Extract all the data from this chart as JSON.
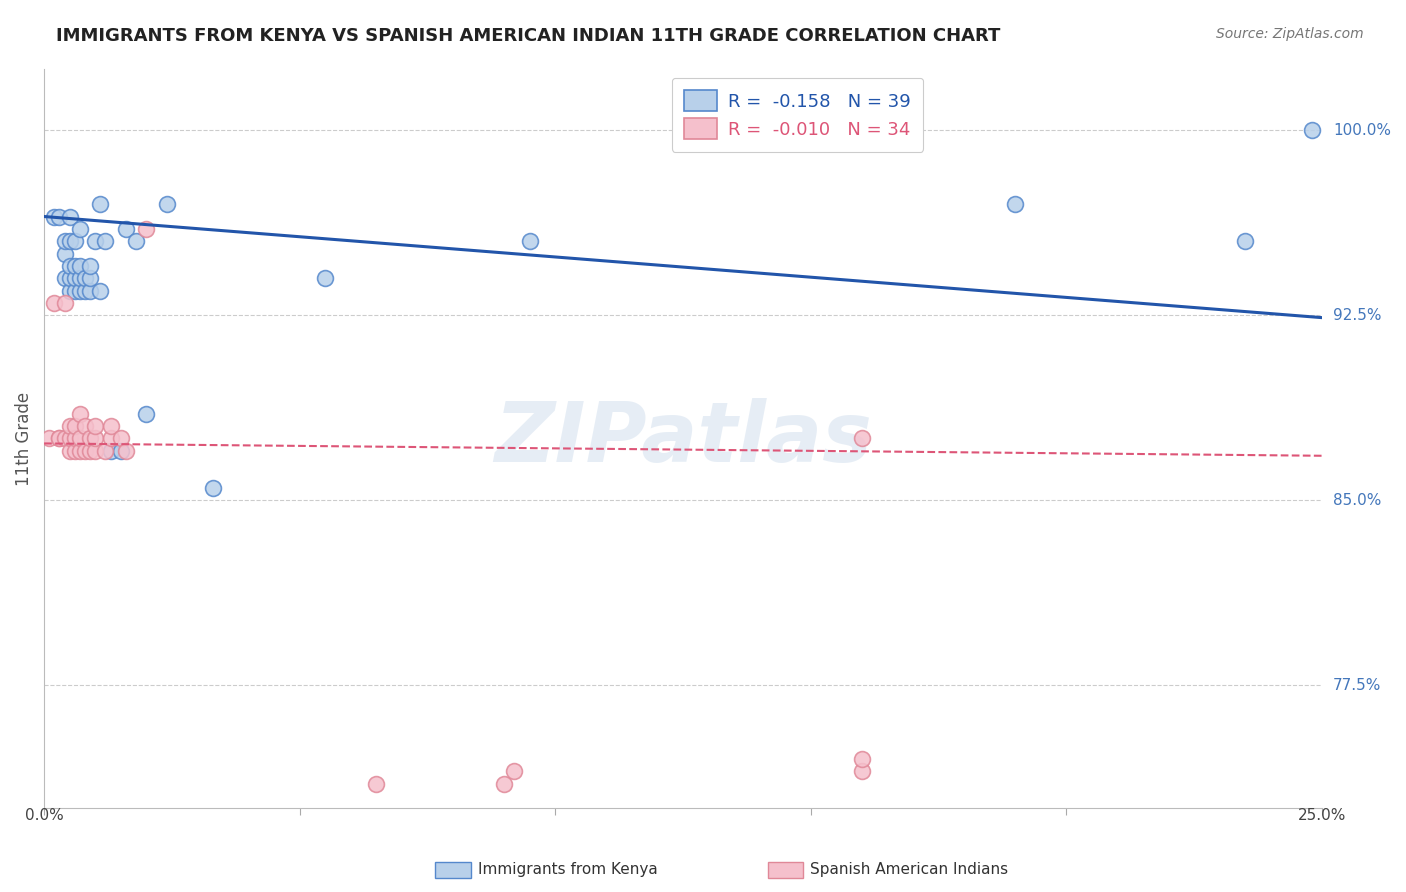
{
  "title": "IMMIGRANTS FROM KENYA VS SPANISH AMERICAN INDIAN 11TH GRADE CORRELATION CHART",
  "source": "Source: ZipAtlas.com",
  "ylabel": "11th Grade",
  "ytick_labels": [
    "100.0%",
    "92.5%",
    "85.0%",
    "77.5%"
  ],
  "ytick_values": [
    1.0,
    0.925,
    0.85,
    0.775
  ],
  "xlim": [
    0.0,
    0.25
  ],
  "ylim": [
    0.725,
    1.025
  ],
  "watermark": "ZIPatlas",
  "legend_R1": "-0.158",
  "legend_N1": "39",
  "legend_R2": "-0.010",
  "legend_N2": "34",
  "blue_scatter_x": [
    0.002,
    0.003,
    0.004,
    0.004,
    0.004,
    0.005,
    0.005,
    0.005,
    0.005,
    0.005,
    0.006,
    0.006,
    0.006,
    0.006,
    0.007,
    0.007,
    0.007,
    0.007,
    0.008,
    0.008,
    0.009,
    0.009,
    0.009,
    0.01,
    0.011,
    0.011,
    0.012,
    0.013,
    0.015,
    0.016,
    0.018,
    0.02,
    0.024,
    0.033,
    0.055,
    0.095,
    0.19,
    0.235,
    0.248
  ],
  "blue_scatter_y": [
    0.965,
    0.965,
    0.94,
    0.95,
    0.955,
    0.935,
    0.94,
    0.945,
    0.955,
    0.965,
    0.935,
    0.94,
    0.945,
    0.955,
    0.935,
    0.94,
    0.945,
    0.96,
    0.935,
    0.94,
    0.935,
    0.94,
    0.945,
    0.955,
    0.935,
    0.97,
    0.955,
    0.87,
    0.87,
    0.96,
    0.955,
    0.885,
    0.97,
    0.855,
    0.94,
    0.955,
    0.97,
    0.955,
    1.0
  ],
  "pink_scatter_x": [
    0.001,
    0.002,
    0.003,
    0.003,
    0.004,
    0.004,
    0.005,
    0.005,
    0.005,
    0.006,
    0.006,
    0.006,
    0.007,
    0.007,
    0.007,
    0.008,
    0.008,
    0.009,
    0.009,
    0.01,
    0.01,
    0.01,
    0.012,
    0.013,
    0.013,
    0.015,
    0.016,
    0.02,
    0.065,
    0.09,
    0.092,
    0.16,
    0.16,
    0.16
  ],
  "pink_scatter_y": [
    0.875,
    0.93,
    0.875,
    0.875,
    0.875,
    0.93,
    0.87,
    0.875,
    0.88,
    0.87,
    0.875,
    0.88,
    0.87,
    0.875,
    0.885,
    0.87,
    0.88,
    0.87,
    0.875,
    0.87,
    0.875,
    0.88,
    0.87,
    0.875,
    0.88,
    0.875,
    0.87,
    0.96,
    0.735,
    0.735,
    0.74,
    0.74,
    0.745,
    0.875
  ],
  "blue_line_x": [
    0.0,
    0.25
  ],
  "blue_line_y": [
    0.965,
    0.924
  ],
  "pink_line_x": [
    0.0,
    0.25
  ],
  "pink_line_y": [
    0.873,
    0.868
  ],
  "grid_color": "#cccccc",
  "scatter_blue_facecolor": "#b8d0ea",
  "scatter_blue_edgecolor": "#5588cc",
  "scatter_pink_facecolor": "#f5c0cc",
  "scatter_pink_edgecolor": "#e08898",
  "trend_blue_color": "#2255aa",
  "trend_pink_color": "#dd5577",
  "background_color": "#ffffff",
  "title_fontsize": 13,
  "source_fontsize": 10,
  "label_fontsize": 11,
  "legend_fontsize": 13,
  "ylabel_fontsize": 12
}
